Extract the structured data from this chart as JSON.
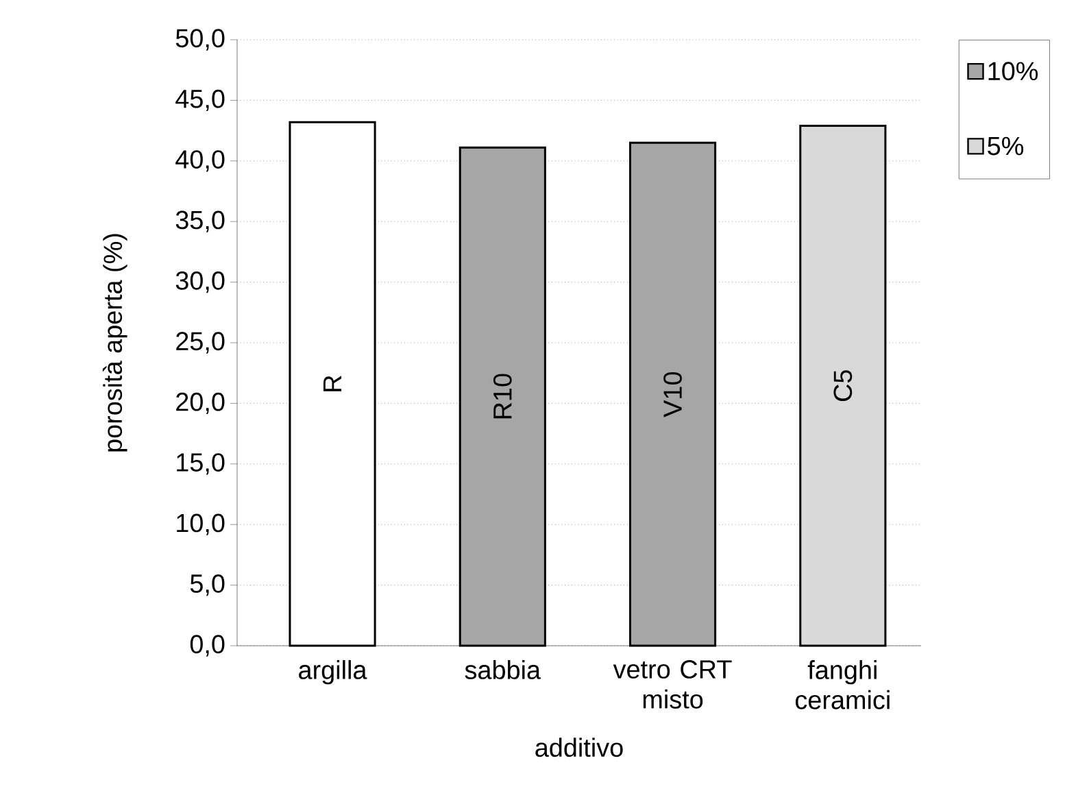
{
  "chart_data": {
    "type": "bar",
    "xlabel": "additivo",
    "ylabel": "porosità aperta (%)",
    "categories": [
      "argilla",
      "sabbia",
      "vetro CRT misto",
      "fanghi ceramici"
    ],
    "series": [
      {
        "color": "#ffffff",
        "values": [
          43.2,
          null,
          null,
          null
        ]
      },
      {
        "name": "10%",
        "color": "#a6a6a6",
        "values": [
          null,
          41.1,
          41.5,
          null
        ]
      },
      {
        "name": "5%",
        "color": "#d9d9d9",
        "values": [
          null,
          null,
          null,
          42.9
        ]
      }
    ],
    "ylim": [
      0,
      50
    ],
    "yticks": [
      {
        "value": 0,
        "label": "0,0"
      },
      {
        "value": 5,
        "label": "5,0"
      },
      {
        "value": 10,
        "label": "10,0"
      },
      {
        "value": 15,
        "label": "15,0"
      },
      {
        "value": 20,
        "label": "20,0"
      },
      {
        "value": 25,
        "label": "25,0"
      },
      {
        "value": 30,
        "label": "30,0"
      },
      {
        "value": 35,
        "label": "35,0"
      },
      {
        "value": 40,
        "label": "40,0"
      },
      {
        "value": 45,
        "label": "45,0"
      },
      {
        "value": 50,
        "label": "50,0"
      }
    ],
    "annotations": [
      "R",
      "R10",
      "V10",
      "C5"
    ],
    "grid": "y",
    "legend": "right"
  }
}
